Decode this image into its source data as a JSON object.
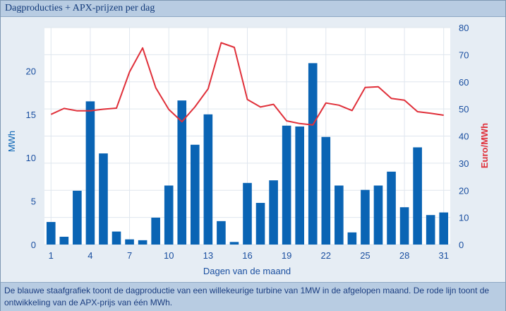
{
  "header": {
    "title": "Dagproducties + APX-prijzen per dag"
  },
  "caption": {
    "text": "De blauwe staafgrafiek toont de dagproductie van een willekeurige turbine van 1MW in de afgelopen maand. De rode lijn toont de ontwikkeling van de APX-prijs van één MWh."
  },
  "chart_data": {
    "type": "bar",
    "xlabel": "Dagen van de maand",
    "ylabel": "MWh",
    "y2label": "Euro/MWh",
    "ylim": [
      0,
      25
    ],
    "y2lim": [
      0,
      80
    ],
    "yticks": [
      0,
      5,
      10,
      15,
      20
    ],
    "y2ticks": [
      0,
      10,
      20,
      30,
      40,
      50,
      60,
      70,
      80
    ],
    "xticks": [
      1,
      4,
      7,
      10,
      13,
      16,
      19,
      22,
      25,
      28,
      31
    ],
    "grid": true,
    "categories": [
      1,
      2,
      3,
      4,
      5,
      6,
      7,
      8,
      9,
      10,
      11,
      12,
      13,
      14,
      15,
      16,
      17,
      18,
      19,
      20,
      21,
      22,
      23,
      24,
      25,
      26,
      27,
      28,
      29,
      30,
      31
    ],
    "series": [
      {
        "type": "bar",
        "axis": "left",
        "color": "#0a64b4",
        "values": [
          2.6,
          0.9,
          6.2,
          16.5,
          10.5,
          1.5,
          0.6,
          0.5,
          3.1,
          6.8,
          16.6,
          11.5,
          15.0,
          2.7,
          0.3,
          7.1,
          4.8,
          7.4,
          13.7,
          13.6,
          20.9,
          12.4,
          6.8,
          1.4,
          6.3,
          6.8,
          8.4,
          4.3,
          11.2,
          3.4,
          3.7
        ]
      },
      {
        "type": "line",
        "axis": "right",
        "color": "#e0303a",
        "values": [
          48.0,
          50.2,
          49.3,
          49.3,
          49.9,
          50.3,
          63.7,
          72.5,
          57.8,
          49.8,
          45.3,
          50.8,
          57.4,
          74.4,
          72.7,
          53.5,
          50.7,
          51.7,
          45.6,
          44.6,
          44.1,
          52.2,
          51.4,
          49.4,
          57.9,
          58.2,
          53.9,
          53.2,
          49.0,
          48.4,
          47.7
        ]
      }
    ]
  }
}
